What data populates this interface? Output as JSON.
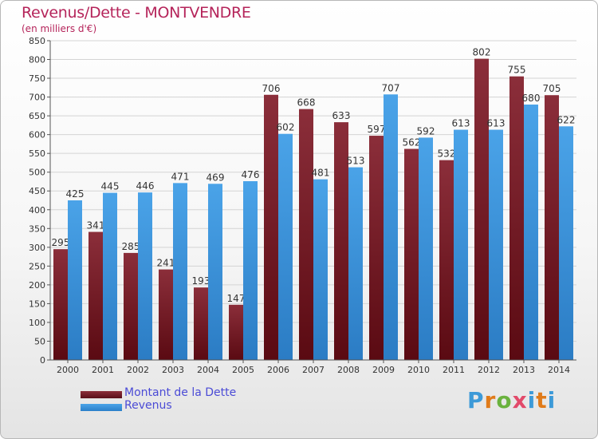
{
  "title": "Revenus/Dette - MONTVENDRE",
  "subtitle": "(en milliers d'€)",
  "colors": {
    "dette": "#8b2e3a",
    "revenus": "#4aa3e8",
    "title": "#b5245a",
    "legend_text": "#4b4bd6"
  },
  "legend": {
    "dette_label": "Montant de la Dette",
    "revenus_label": "Revenus"
  },
  "logo": {
    "letters": [
      "P",
      "r",
      "o",
      "x",
      "i",
      "t",
      "i"
    ],
    "colors": [
      "#3d9ad8",
      "#e07b1a",
      "#6ab23e",
      "#e24a6a",
      "#3d9ad8",
      "#e07b1a",
      "#3d9ad8"
    ]
  },
  "chart_data": {
    "type": "bar",
    "categories": [
      "2000",
      "2001",
      "2002",
      "2003",
      "2004",
      "2005",
      "2006",
      "2007",
      "2008",
      "2009",
      "2010",
      "2011",
      "2012",
      "2013",
      "2014"
    ],
    "series": [
      {
        "name": "Montant de la Dette",
        "values": [
          295,
          341,
          285,
          241,
          193,
          147,
          706,
          668,
          633,
          597,
          562,
          532,
          802,
          755,
          705
        ]
      },
      {
        "name": "Revenus",
        "values": [
          425,
          445,
          446,
          471,
          469,
          476,
          602,
          481,
          513,
          707,
          592,
          613,
          613,
          680,
          622
        ]
      }
    ],
    "ylim": [
      0,
      850
    ],
    "ytick_step": 50,
    "grid": true,
    "legend_position": "bottom-left"
  }
}
